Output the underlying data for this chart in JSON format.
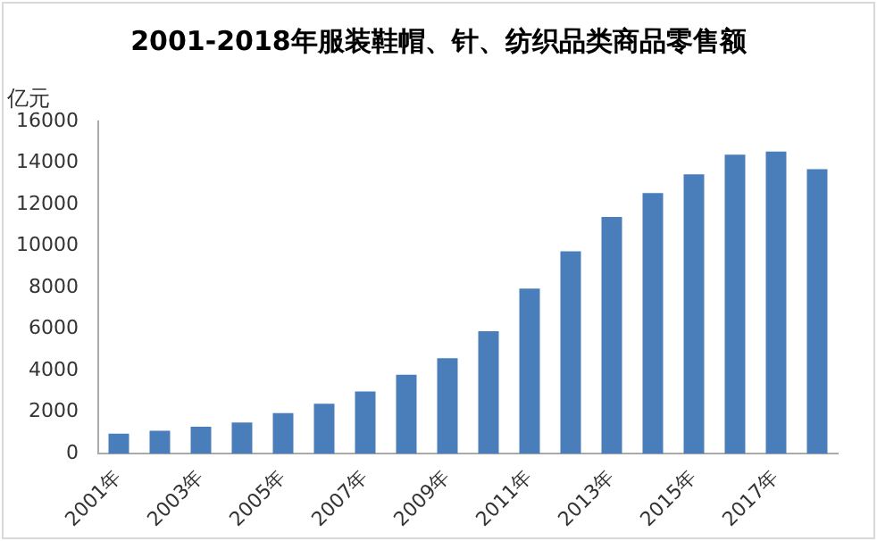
{
  "chart_data": {
    "type": "bar",
    "title": "2001-2018年服装鞋帽、针、纺织品类商品零售额",
    "ylabel": "亿元",
    "categories": [
      "2001年",
      null,
      "2003年",
      null,
      "2005年",
      null,
      "2007年",
      null,
      "2009年",
      null,
      "2011年",
      null,
      "2013年",
      null,
      "2015年",
      null,
      "2017年",
      null
    ],
    "values": [
      960,
      1100,
      1300,
      1500,
      1950,
      2400,
      3000,
      3800,
      4600,
      5900,
      7950,
      9750,
      11400,
      12550,
      13450,
      14400,
      14550,
      13700
    ],
    "color": "#4a7ebb",
    "ylim": [
      0,
      16000
    ],
    "yticks": [
      0,
      2000,
      4000,
      6000,
      8000,
      10000,
      12000,
      14000,
      16000
    ],
    "grid": false
  }
}
